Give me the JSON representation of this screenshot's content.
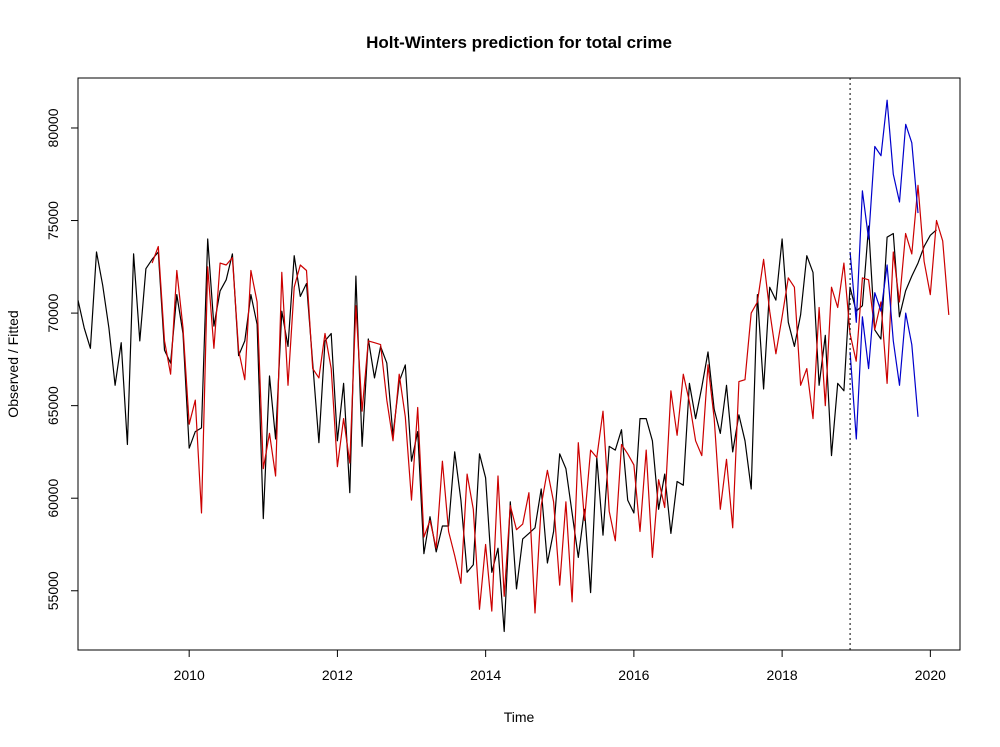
{
  "chart_data": {
    "type": "line",
    "title": "Holt-Winters prediction for total crime",
    "xlabel": "Time",
    "ylabel": "Observed / Fitted",
    "xlim": [
      2008.5,
      2020.4
    ],
    "ylim": [
      51800,
      82700
    ],
    "x_ticks": [
      2010,
      2012,
      2014,
      2016,
      2018,
      2020
    ],
    "x_tick_labels": [
      "2010",
      "2012",
      "2014",
      "2016",
      "2018",
      "2020"
    ],
    "y_ticks": [
      55000,
      60000,
      65000,
      70000,
      75000,
      80000
    ],
    "y_tick_labels": [
      "55000",
      "60000",
      "65000",
      "70000",
      "75000",
      "80000"
    ],
    "grid": false,
    "legend": "none",
    "forecast_origin": 2018.917,
    "forecast_origin_style": "dotted",
    "series": [
      {
        "color": "#000000",
        "x_start": 2008.5,
        "step": 0.08333,
        "values": [
          70700,
          69200,
          68100,
          73300,
          71500,
          69200,
          66100,
          68400,
          62900,
          73200,
          68500,
          72400,
          72900,
          73300,
          68000,
          67300,
          71000,
          68900,
          62700,
          63600,
          63800,
          74000,
          69300,
          71200,
          71800,
          73200,
          67700,
          68500,
          71000,
          69400,
          58900,
          66600,
          63200,
          70100,
          68200,
          73100,
          70900,
          71600,
          67300,
          63000,
          68500,
          68900,
          63100,
          66200,
          60300,
          72000,
          62800,
          68600,
          66500,
          68200,
          67300,
          63400,
          66300,
          67200,
          62000,
          63600,
          57000,
          59000,
          57100,
          58500,
          58500,
          62500,
          59900,
          56000,
          56400,
          62400,
          61100,
          56000,
          57300,
          52800,
          59800,
          55100,
          57800,
          58100,
          58400,
          60500,
          56500,
          58200,
          62400,
          61600,
          59200,
          56800,
          59400,
          54900,
          62200,
          58000,
          62800,
          62600,
          63700,
          59900,
          59200,
          64300,
          64300,
          63100,
          59400,
          61300,
          58100,
          60900,
          60700,
          66200,
          64300,
          66000,
          67900,
          64800,
          63500,
          66100,
          62500,
          64500,
          63100,
          60500,
          71000,
          65900,
          71400,
          70700,
          74000,
          69500,
          68200,
          69900,
          73100,
          72200,
          66100,
          68800,
          62300,
          66200,
          65800,
          71400,
          70100,
          70400,
          74700,
          69100,
          68600,
          74100,
          74300,
          69800,
          71200,
          72000,
          72700,
          73600,
          74200,
          74500
        ]
      },
      {
        "color": "#cc0000",
        "x_start": 2008.5,
        "step": 0.08333,
        "values": [
          null,
          null,
          null,
          null,
          null,
          null,
          null,
          null,
          null,
          null,
          null,
          null,
          72700,
          73600,
          68500,
          66700,
          72300,
          69200,
          64000,
          65300,
          59200,
          72500,
          68100,
          72700,
          72600,
          73000,
          68000,
          66400,
          72300,
          70600,
          61600,
          63500,
          61200,
          72200,
          66100,
          71400,
          72600,
          72300,
          67000,
          66500,
          68900,
          67000,
          61700,
          64300,
          61900,
          70400,
          64700,
          68500,
          68400,
          68300,
          65300,
          63100,
          66700,
          64400,
          59900,
          64900,
          57900,
          58800,
          57300,
          62000,
          58200,
          56900,
          55400,
          61300,
          59400,
          54000,
          57500,
          53900,
          61200,
          54700,
          59600,
          58300,
          58600,
          60300,
          53800,
          59600,
          61500,
          59800,
          55300,
          59800,
          54400,
          63000,
          58800,
          62600,
          62200,
          64700,
          59300,
          57700,
          62900,
          62400,
          61800,
          58200,
          62600,
          56800,
          61000,
          59500,
          65800,
          63400,
          66700,
          65200,
          63100,
          62300,
          67200,
          64300,
          59400,
          62100,
          58400,
          66300,
          66400,
          70000,
          70600,
          72900,
          70100,
          67800,
          69800,
          71900,
          71400,
          66100,
          67000,
          64300,
          70300,
          65000,
          71400,
          70300,
          72700,
          68900,
          67400,
          71900,
          71800,
          69100,
          70600,
          66200,
          73300,
          70600,
          74300,
          73200,
          76900,
          72800,
          71000,
          75000,
          73900,
          69900
        ]
      },
      {
        "color": "#0000cc",
        "x_start": 2018.917,
        "step": 0.08333,
        "values": [
          73300,
          69500,
          76600,
          74000,
          79000,
          78500,
          81500,
          77500,
          76000,
          80200,
          79200,
          75400
        ]
      },
      {
        "color": "#0000cc",
        "x_start": 2018.917,
        "step": 0.08333,
        "values": [
          67900,
          63200,
          69800,
          67000,
          71100,
          70100,
          72600,
          68500,
          66100,
          70000,
          68300,
          64400
        ]
      }
    ]
  }
}
